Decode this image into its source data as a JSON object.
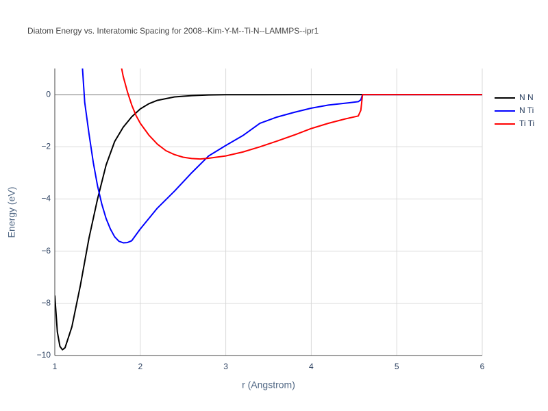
{
  "chart_data": {
    "type": "line",
    "title": "Diatom Energy vs. Interatomic Spacing for 2008--Kim-Y-M--Ti-N--LAMMPS--ipr1",
    "x_label": "r (Angstrom)",
    "y_label": "Energy (eV)",
    "xlim": [
      1,
      6
    ],
    "xticks": [
      1,
      2,
      3,
      4,
      5,
      6
    ],
    "ylim": [
      -10,
      1
    ],
    "yticks": [
      {
        "value": -10,
        "label": "−10"
      },
      {
        "value": -8,
        "label": "−8"
      },
      {
        "value": -6,
        "label": "−6"
      },
      {
        "value": -4,
        "label": "−4"
      },
      {
        "value": -2,
        "label": "−2"
      },
      0
    ],
    "grid": true,
    "legend": "top-right",
    "series": [
      {
        "name": "N N",
        "color": "#000000",
        "x": [
          1.0,
          1.03,
          1.06,
          1.09,
          1.12,
          1.15,
          1.2,
          1.3,
          1.4,
          1.5,
          1.6,
          1.7,
          1.8,
          1.9,
          2.0,
          2.1,
          2.2,
          2.4,
          2.6,
          2.8,
          3.0,
          4.0,
          5.0,
          6.0
        ],
        "values": [
          -7.7,
          -9.1,
          -9.65,
          -9.78,
          -9.7,
          -9.4,
          -8.9,
          -7.3,
          -5.5,
          -4.0,
          -2.7,
          -1.8,
          -1.25,
          -0.85,
          -0.55,
          -0.35,
          -0.22,
          -0.09,
          -0.04,
          -0.015,
          -0.005,
          0,
          0,
          0
        ]
      },
      {
        "name": "N Ti",
        "color": "#0000ff",
        "x": [
          1.32,
          1.35,
          1.4,
          1.45,
          1.5,
          1.55,
          1.6,
          1.65,
          1.7,
          1.75,
          1.8,
          1.85,
          1.9,
          2.0,
          2.2,
          2.4,
          2.6,
          2.8,
          3.0,
          3.2,
          3.4,
          3.6,
          3.8,
          4.0,
          4.2,
          4.4,
          4.55,
          4.58,
          4.6,
          5.0,
          6.0
        ],
        "values": [
          1.2,
          -0.3,
          -1.5,
          -2.6,
          -3.5,
          -4.2,
          -4.75,
          -5.15,
          -5.45,
          -5.62,
          -5.68,
          -5.67,
          -5.6,
          -5.15,
          -4.35,
          -3.7,
          -3.0,
          -2.35,
          -1.95,
          -1.57,
          -1.1,
          -0.86,
          -0.68,
          -0.52,
          -0.4,
          -0.33,
          -0.27,
          -0.2,
          0,
          0,
          0
        ]
      },
      {
        "name": "Ti Ti",
        "color": "#ff0000",
        "x": [
          1.77,
          1.8,
          1.85,
          1.9,
          1.95,
          2.0,
          2.1,
          2.2,
          2.3,
          2.4,
          2.5,
          2.6,
          2.7,
          2.8,
          3.0,
          3.2,
          3.4,
          3.6,
          3.8,
          4.0,
          4.2,
          4.4,
          4.55,
          4.58,
          4.6,
          5.0,
          6.0
        ],
        "values": [
          1.2,
          0.7,
          0.1,
          -0.4,
          -0.8,
          -1.1,
          -1.55,
          -1.9,
          -2.15,
          -2.3,
          -2.4,
          -2.45,
          -2.47,
          -2.44,
          -2.35,
          -2.2,
          -2.0,
          -1.78,
          -1.55,
          -1.3,
          -1.1,
          -0.93,
          -0.82,
          -0.6,
          0,
          0,
          0
        ]
      }
    ]
  }
}
